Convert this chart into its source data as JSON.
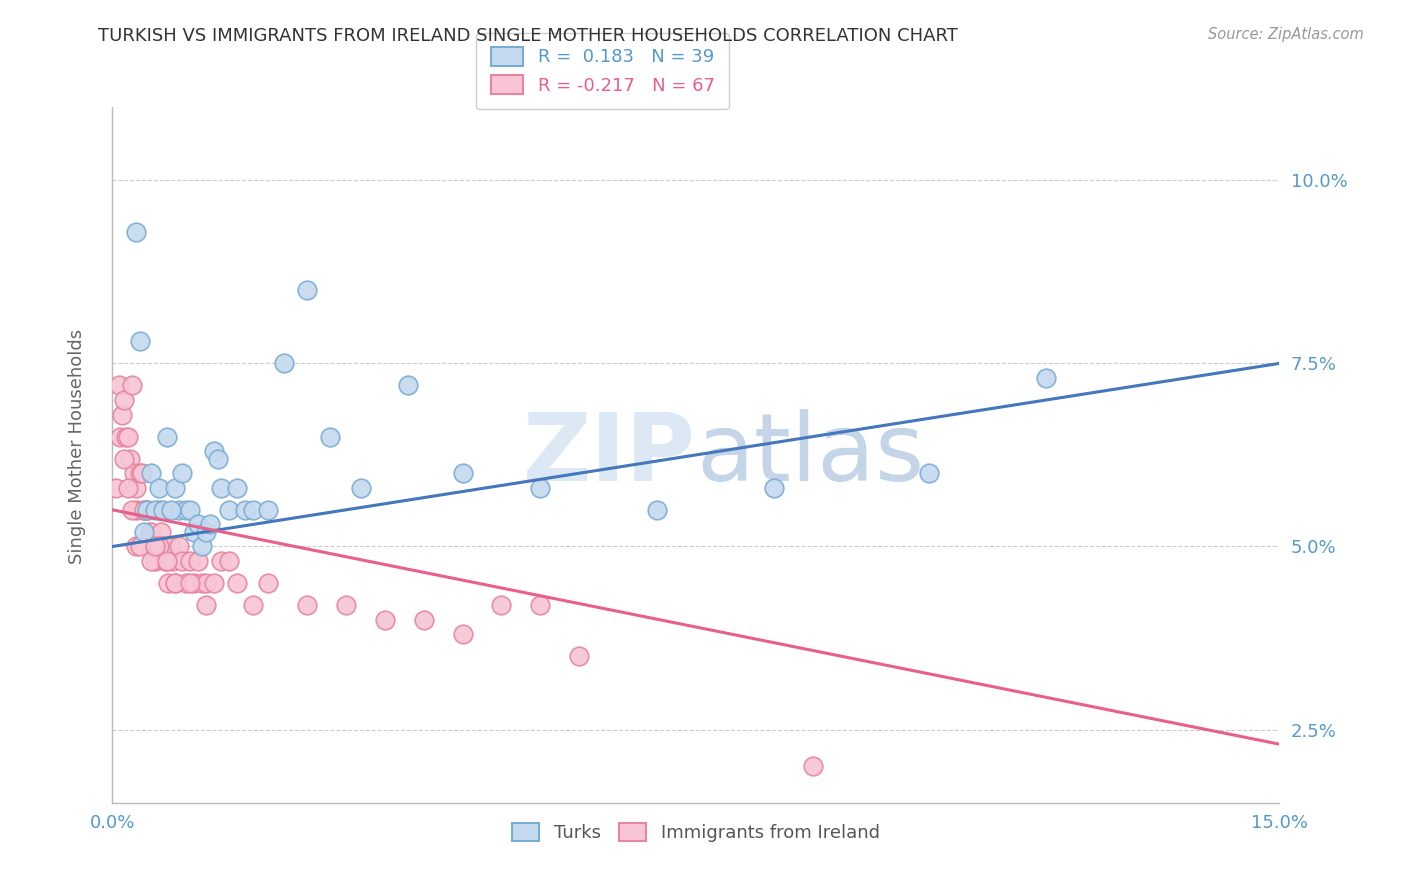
{
  "title": "TURKISH VS IMMIGRANTS FROM IRELAND SINGLE MOTHER HOUSEHOLDS CORRELATION CHART",
  "source": "Source: ZipAtlas.com",
  "ylabel": "Single Mother Households",
  "xlim": [
    0.0,
    15.0
  ],
  "ylim": [
    1.5,
    11.0
  ],
  "turks_R": 0.183,
  "turks_N": 39,
  "ireland_R": -0.217,
  "ireland_N": 67,
  "background_color": "#ffffff",
  "grid_color": "#cccccc",
  "turks_color": "#c5d9ef",
  "turks_edge_color": "#7aadd4",
  "ireland_color": "#f7c5d3",
  "ireland_edge_color": "#e8849f",
  "trend_turks_color": "#4477bb",
  "trend_ireland_color": "#e8608a",
  "axis_color": "#5599cc",
  "tick_label_color": "#5599cc",
  "title_color": "#333333",
  "source_color": "#999999",
  "ylabel_color": "#666666",
  "watermark_color": "#dce8f4",
  "watermark_color2": "#c5d5e8",
  "turks_x": [
    0.3,
    0.35,
    2.2,
    2.5,
    2.8,
    3.8,
    0.5,
    0.6,
    0.7,
    0.8,
    0.85,
    0.9,
    0.95,
    1.0,
    1.05,
    1.1,
    1.15,
    1.2,
    1.25,
    1.3,
    1.35,
    1.4,
    1.5,
    1.6,
    1.7,
    1.8,
    2.0,
    3.2,
    4.5,
    5.5,
    7.0,
    8.5,
    10.5,
    0.4,
    0.45,
    0.55,
    0.65,
    12.0,
    0.75
  ],
  "turks_y": [
    9.3,
    7.8,
    7.5,
    8.5,
    6.5,
    7.2,
    6.0,
    5.8,
    6.5,
    5.8,
    5.5,
    6.0,
    5.5,
    5.5,
    5.2,
    5.3,
    5.0,
    5.2,
    5.3,
    6.3,
    6.2,
    5.8,
    5.5,
    5.8,
    5.5,
    5.5,
    5.5,
    5.8,
    6.0,
    5.8,
    5.5,
    5.8,
    6.0,
    5.2,
    5.5,
    5.5,
    5.5,
    7.3,
    5.5
  ],
  "ireland_x": [
    0.05,
    0.08,
    0.1,
    0.12,
    0.15,
    0.18,
    0.2,
    0.22,
    0.25,
    0.28,
    0.3,
    0.32,
    0.35,
    0.38,
    0.4,
    0.42,
    0.45,
    0.48,
    0.5,
    0.52,
    0.55,
    0.58,
    0.6,
    0.62,
    0.65,
    0.68,
    0.7,
    0.72,
    0.75,
    0.78,
    0.8,
    0.85,
    0.9,
    0.95,
    1.0,
    1.05,
    1.1,
    1.15,
    1.2,
    1.3,
    1.4,
    1.5,
    1.6,
    1.8,
    2.0,
    2.5,
    3.0,
    3.5,
    4.0,
    4.5,
    5.0,
    5.5,
    6.0,
    0.25,
    0.3,
    0.35,
    0.5,
    0.6,
    0.7,
    0.8,
    1.0,
    1.2,
    9.0,
    0.15,
    0.2,
    0.4,
    0.55
  ],
  "ireland_y": [
    5.8,
    7.2,
    6.5,
    6.8,
    7.0,
    6.5,
    6.5,
    6.2,
    7.2,
    6.0,
    5.8,
    5.5,
    6.0,
    6.0,
    5.5,
    5.5,
    5.5,
    5.2,
    5.2,
    5.0,
    4.8,
    5.0,
    5.5,
    5.2,
    5.0,
    4.8,
    4.8,
    4.5,
    5.0,
    4.8,
    4.5,
    5.0,
    4.8,
    4.5,
    4.8,
    4.5,
    4.8,
    4.5,
    4.5,
    4.5,
    4.8,
    4.8,
    4.5,
    4.2,
    4.5,
    4.2,
    4.2,
    4.0,
    4.0,
    3.8,
    4.2,
    4.2,
    3.5,
    5.5,
    5.0,
    5.0,
    4.8,
    5.0,
    4.8,
    4.5,
    4.5,
    4.2,
    2.0,
    6.2,
    5.8,
    5.5,
    5.0
  ]
}
